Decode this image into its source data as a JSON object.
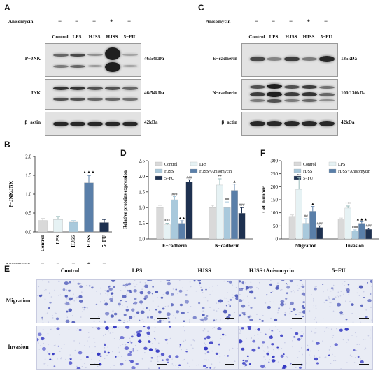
{
  "panels": {
    "A": "A",
    "B": "B",
    "C": "C",
    "D": "D",
    "E": "E",
    "F": "F"
  },
  "anisomycin_label": "Anisomycin",
  "blot_A": {
    "lanes": [
      "Control",
      "LPS",
      "HJSS",
      "HJSS",
      "5−FU"
    ],
    "anisomycin_marks": [
      "−",
      "−",
      "−",
      "+",
      "−"
    ],
    "rows": [
      {
        "name": "P−JNK",
        "size": "46/54kDa"
      },
      {
        "name": "JNK",
        "size": "46/54kDa"
      },
      {
        "name": "β−actin",
        "size": "42kDa"
      }
    ]
  },
  "blot_C": {
    "lanes": [
      "Control",
      "LPS",
      "HJSS",
      "HJSS",
      "5−FU"
    ],
    "anisomycin_marks": [
      "−",
      "−",
      "−",
      "+",
      "−"
    ],
    "rows": [
      {
        "name": "E−cadherin",
        "size": "135kDa"
      },
      {
        "name": "N−cadherin",
        "size": "100/130kDa"
      },
      {
        "name": "β−actin",
        "size": "42kDa"
      }
    ]
  },
  "chart_data": [
    {
      "panel": "B",
      "type": "bar",
      "ylabel": "P−JNK/JNK",
      "ylim": [
        0,
        2.0
      ],
      "yticks": [
        "0.0",
        "0.5",
        "1.0",
        "1.5",
        "2.0"
      ],
      "categories": [
        "Control",
        "LPS",
        "HJSS",
        "HJSS",
        "5−FU"
      ],
      "values": [
        0.3,
        0.33,
        0.26,
        1.3,
        0.25
      ],
      "errors": [
        0.06,
        0.08,
        0.04,
        0.2,
        0.08
      ],
      "colors": [
        "#d9d9d9",
        "#e6f2f4",
        "#a9c9dc",
        "#5a7fa9",
        "#1e3150"
      ],
      "annotations": [
        "",
        "",
        "",
        "▲▲▲",
        ""
      ],
      "anisomycin_marks": [
        "−",
        "−",
        "−",
        "+",
        "−"
      ]
    },
    {
      "panel": "D",
      "type": "bar",
      "ylabel": "Relative proteins expression",
      "ylim": [
        0,
        2.5
      ],
      "yticks": [
        "0.0",
        "0.5",
        "1.0",
        "1.5",
        "2.0",
        "2.5"
      ],
      "categories": [
        "E−cadherin",
        "N−cadherin"
      ],
      "legend": [
        "Control",
        "LPS",
        "HJSS",
        "HJSS+Anisomycin",
        "5−FU"
      ],
      "colors": [
        "#d9d9d9",
        "#e6f2f4",
        "#a9c9dc",
        "#5a7fa9",
        "#1e3150"
      ],
      "series": [
        {
          "name": "Control",
          "values": [
            1.0,
            1.0
          ],
          "errors": [
            0.07,
            0.07
          ],
          "annotations": [
            "",
            ""
          ]
        },
        {
          "name": "LPS",
          "values": [
            0.45,
            1.72
          ],
          "errors": [
            0.05,
            0.2
          ],
          "annotations": [
            "***",
            "**"
          ]
        },
        {
          "name": "HJSS",
          "values": [
            1.25,
            1.0
          ],
          "errors": [
            0.1,
            0.18
          ],
          "annotations": [
            "###",
            "##"
          ]
        },
        {
          "name": "HJSS+Anisomycin",
          "values": [
            0.5,
            1.55
          ],
          "errors": [
            0.08,
            0.2
          ],
          "annotations": [
            "▲▲",
            "▲"
          ]
        },
        {
          "name": "5−FU",
          "values": [
            1.82,
            0.82
          ],
          "errors": [
            0.07,
            0.18
          ],
          "annotations": [
            "###",
            "###"
          ]
        }
      ]
    },
    {
      "panel": "F",
      "type": "bar",
      "ylabel": "Cell number",
      "ylim": [
        0,
        300
      ],
      "yticks": [
        "0",
        "50",
        "100",
        "150",
        "200",
        "250",
        "300"
      ],
      "categories": [
        "Migration",
        "Invasion"
      ],
      "legend": [
        "Control",
        "LPS",
        "HJSS",
        "HJSS+Anisomycin",
        "5−FU"
      ],
      "colors": [
        "#d9d9d9",
        "#e6f2f4",
        "#a9c9dc",
        "#5a7fa9",
        "#1e3150"
      ],
      "series": [
        {
          "name": "Control",
          "values": [
            86,
            76
          ],
          "errors": [
            6,
            4
          ],
          "annotations": [
            "",
            ""
          ]
        },
        {
          "name": "LPS",
          "values": [
            190,
            118
          ],
          "errors": [
            45,
            8
          ],
          "annotations": [
            "**",
            "***"
          ]
        },
        {
          "name": "HJSS",
          "values": [
            60,
            30
          ],
          "errors": [
            18,
            5
          ],
          "annotations": [
            "##",
            "###"
          ]
        },
        {
          "name": "HJSS+Anisomycin",
          "values": [
            106,
            60
          ],
          "errors": [
            18,
            6
          ],
          "annotations": [
            "▲",
            "▲▲▲"
          ]
        },
        {
          "name": "5−FU",
          "values": [
            44,
            37
          ],
          "errors": [
            6,
            4
          ],
          "annotations": [
            "###",
            "###"
          ]
        }
      ]
    }
  ],
  "micrographs": {
    "columns": [
      "Control",
      "LPS",
      "HJSS",
      "HJSS+Anisomycin",
      "5−FU"
    ],
    "rows": [
      "Migration",
      "Invasion"
    ],
    "density": [
      [
        30,
        70,
        35,
        50,
        20
      ],
      [
        22,
        45,
        18,
        40,
        12
      ]
    ]
  }
}
